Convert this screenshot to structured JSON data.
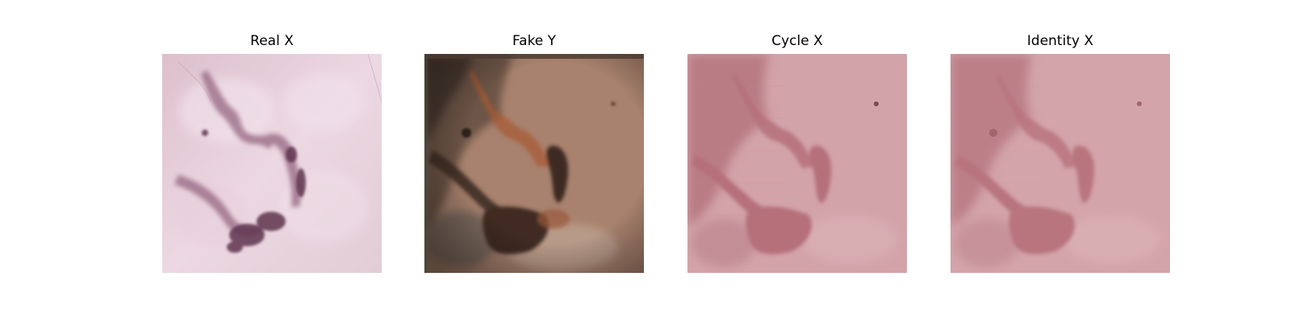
{
  "panels": [
    {
      "title": "Real X",
      "image": "dermoscopy-skin-lesion-image"
    },
    {
      "title": "Fake Y",
      "image": "generated-translated-lesion-image"
    },
    {
      "title": "Cycle X",
      "image": "cycle-reconstructed-lesion-image"
    },
    {
      "title": "Identity X",
      "image": "identity-mapped-lesion-image"
    }
  ],
  "colors": {
    "real_base": "#e6ccd9",
    "real_lesion": "#5e3550",
    "fake_base": "#a8826e",
    "fake_dark": "#473127",
    "fake_rust": "#a85a35",
    "cycle_base": "#d2a3a9",
    "cycle_dark": "#b5707a"
  }
}
